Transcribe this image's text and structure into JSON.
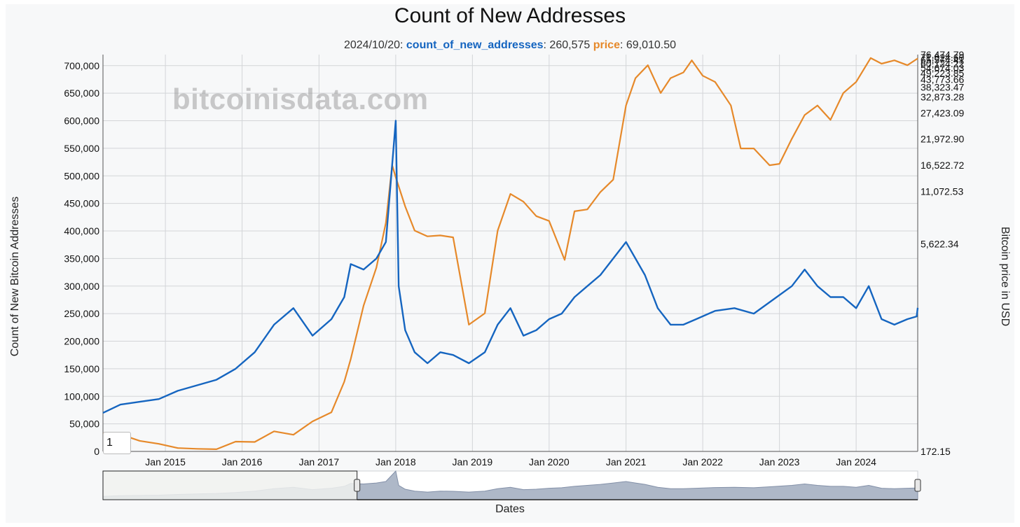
{
  "chart_data": {
    "type": "line",
    "title": "Count of New Addresses",
    "tooltip": {
      "date": "2024/10/20",
      "items": [
        {
          "name": "count_of_new_addresses",
          "value": "260,575",
          "color": "#1565c0"
        },
        {
          "name": "price",
          "value": "69,010.50",
          "color": "#e6892a"
        }
      ]
    },
    "watermark": "bitcoinisdata.com",
    "xlabel": "Dates",
    "ylabel_left": "Count of New Bitcoin Addresses",
    "ylabel_right": "Bitcoin price in USD",
    "x_range": [
      "2014-03-10",
      "2024-10-20"
    ],
    "x_ticks": [
      "Jan 2015",
      "Jan 2016",
      "Jan 2017",
      "Jan 2018",
      "Jan 2019",
      "Jan 2020",
      "Jan 2021",
      "Jan 2022",
      "Jan 2023",
      "Jan 2024"
    ],
    "y_left": {
      "range": [
        0,
        720000
      ],
      "ticks": [
        0,
        50000,
        100000,
        150000,
        200000,
        250000,
        300000,
        350000,
        400000,
        450000,
        500000,
        550000,
        600000,
        650000,
        700000
      ],
      "tick_labels": [
        "0",
        "50,000",
        "100,000",
        "150,000",
        "200,000",
        "250,000",
        "300,000",
        "350,000",
        "400,000",
        "450,000",
        "500,000",
        "550,000",
        "600,000",
        "650,000",
        "700,000"
      ]
    },
    "y_right": {
      "scale": "custom",
      "ticks": [
        172.15,
        5622.34,
        11072.53,
        16522.72,
        21972.9,
        27423.09,
        32873.28,
        38323.47,
        43773.66,
        49223.85,
        54674.03,
        60124.22,
        65574.41,
        71024.6,
        76474.79
      ],
      "tick_labels": [
        "172.15",
        "5,622.34",
        "11,072.53",
        "16,522.72",
        "21,972.90",
        "27,423.09",
        "32,873.28",
        "38,323.47",
        "43,773.66",
        "49,223.85",
        "54,674.03",
        "60,124.22",
        "65,574.41",
        "71,024.60",
        "76,474.79"
      ]
    },
    "grid": true,
    "series": [
      {
        "name": "count_of_new_addresses",
        "color": "#1565c0",
        "x": [
          "2014-03-10",
          "2014-06-01",
          "2014-09-01",
          "2014-12-01",
          "2015-03-01",
          "2015-06-01",
          "2015-09-01",
          "2015-12-01",
          "2016-03-01",
          "2016-06-01",
          "2016-09-01",
          "2016-12-01",
          "2017-03-01",
          "2017-05-01",
          "2017-06-01",
          "2017-08-01",
          "2017-10-01",
          "2017-11-15",
          "2017-12-15",
          "2018-01-01",
          "2018-01-15",
          "2018-02-15",
          "2018-04-01",
          "2018-06-01",
          "2018-08-01",
          "2018-10-01",
          "2018-12-15",
          "2019-03-01",
          "2019-05-01",
          "2019-07-01",
          "2019-09-01",
          "2019-11-01",
          "2020-01-01",
          "2020-03-01",
          "2020-05-01",
          "2020-07-01",
          "2020-09-01",
          "2020-11-01",
          "2021-01-01",
          "2021-02-15",
          "2021-04-01",
          "2021-06-01",
          "2021-08-01",
          "2021-10-01",
          "2021-12-01",
          "2022-03-01",
          "2022-06-01",
          "2022-09-01",
          "2022-12-01",
          "2023-03-01",
          "2023-05-01",
          "2023-07-01",
          "2023-09-01",
          "2023-11-01",
          "2024-01-01",
          "2024-03-01",
          "2024-05-01",
          "2024-07-01",
          "2024-09-01",
          "2024-10-15",
          "2024-10-20"
        ],
        "values": [
          70000,
          85000,
          90000,
          95000,
          110000,
          120000,
          130000,
          150000,
          180000,
          230000,
          260000,
          210000,
          240000,
          280000,
          340000,
          330000,
          350000,
          380000,
          520000,
          600000,
          300000,
          220000,
          180000,
          160000,
          180000,
          175000,
          160000,
          180000,
          230000,
          260000,
          210000,
          220000,
          240000,
          250000,
          280000,
          300000,
          320000,
          350000,
          380000,
          350000,
          320000,
          260000,
          230000,
          230000,
          240000,
          255000,
          260000,
          250000,
          275000,
          300000,
          330000,
          300000,
          280000,
          280000,
          260000,
          300000,
          240000,
          230000,
          240000,
          245000,
          260575
        ]
      },
      {
        "name": "price",
        "color": "#e6892a",
        "x": [
          "2014-03-10",
          "2014-06-01",
          "2014-09-01",
          "2014-12-01",
          "2015-03-01",
          "2015-06-01",
          "2015-09-01",
          "2015-12-01",
          "2016-03-01",
          "2016-06-01",
          "2016-09-01",
          "2016-12-01",
          "2017-03-01",
          "2017-05-01",
          "2017-06-01",
          "2017-08-01",
          "2017-10-01",
          "2017-11-15",
          "2017-12-15",
          "2018-01-01",
          "2018-02-15",
          "2018-04-01",
          "2018-06-01",
          "2018-08-01",
          "2018-10-01",
          "2018-12-15",
          "2019-03-01",
          "2019-05-01",
          "2019-07-01",
          "2019-09-01",
          "2019-11-01",
          "2020-01-01",
          "2020-03-15",
          "2020-05-01",
          "2020-07-01",
          "2020-09-01",
          "2020-11-01",
          "2021-01-01",
          "2021-02-15",
          "2021-04-15",
          "2021-06-15",
          "2021-08-01",
          "2021-10-01",
          "2021-11-10",
          "2022-01-01",
          "2022-03-01",
          "2022-05-15",
          "2022-07-01",
          "2022-09-01",
          "2022-11-15",
          "2023-01-01",
          "2023-03-01",
          "2023-05-01",
          "2023-07-01",
          "2023-09-01",
          "2023-11-01",
          "2024-01-01",
          "2024-03-10",
          "2024-05-01",
          "2024-07-01",
          "2024-09-01",
          "2024-10-20"
        ],
        "values": [
          640,
          620,
          450,
          370,
          260,
          240,
          230,
          430,
          420,
          700,
          610,
          960,
          1200,
          2000,
          2600,
          4000,
          5000,
          7800,
          16500,
          14000,
          9500,
          7000,
          6400,
          6500,
          6300,
          3500,
          3800,
          7000,
          10800,
          10000,
          8500,
          8000,
          5200,
          9000,
          9200,
          11000,
          13500,
          30000,
          45000,
          58000,
          35000,
          45000,
          50000,
          65000,
          47000,
          42000,
          30000,
          20000,
          20000,
          16500,
          16800,
          22000,
          27000,
          30000,
          26000,
          35000,
          42000,
          70000,
          60000,
          65000,
          58000,
          69010.5
        ]
      }
    ],
    "navigator": {
      "selected_range": [
        "2017-07-01",
        "2024-10-20"
      ]
    },
    "range_input": "1"
  }
}
